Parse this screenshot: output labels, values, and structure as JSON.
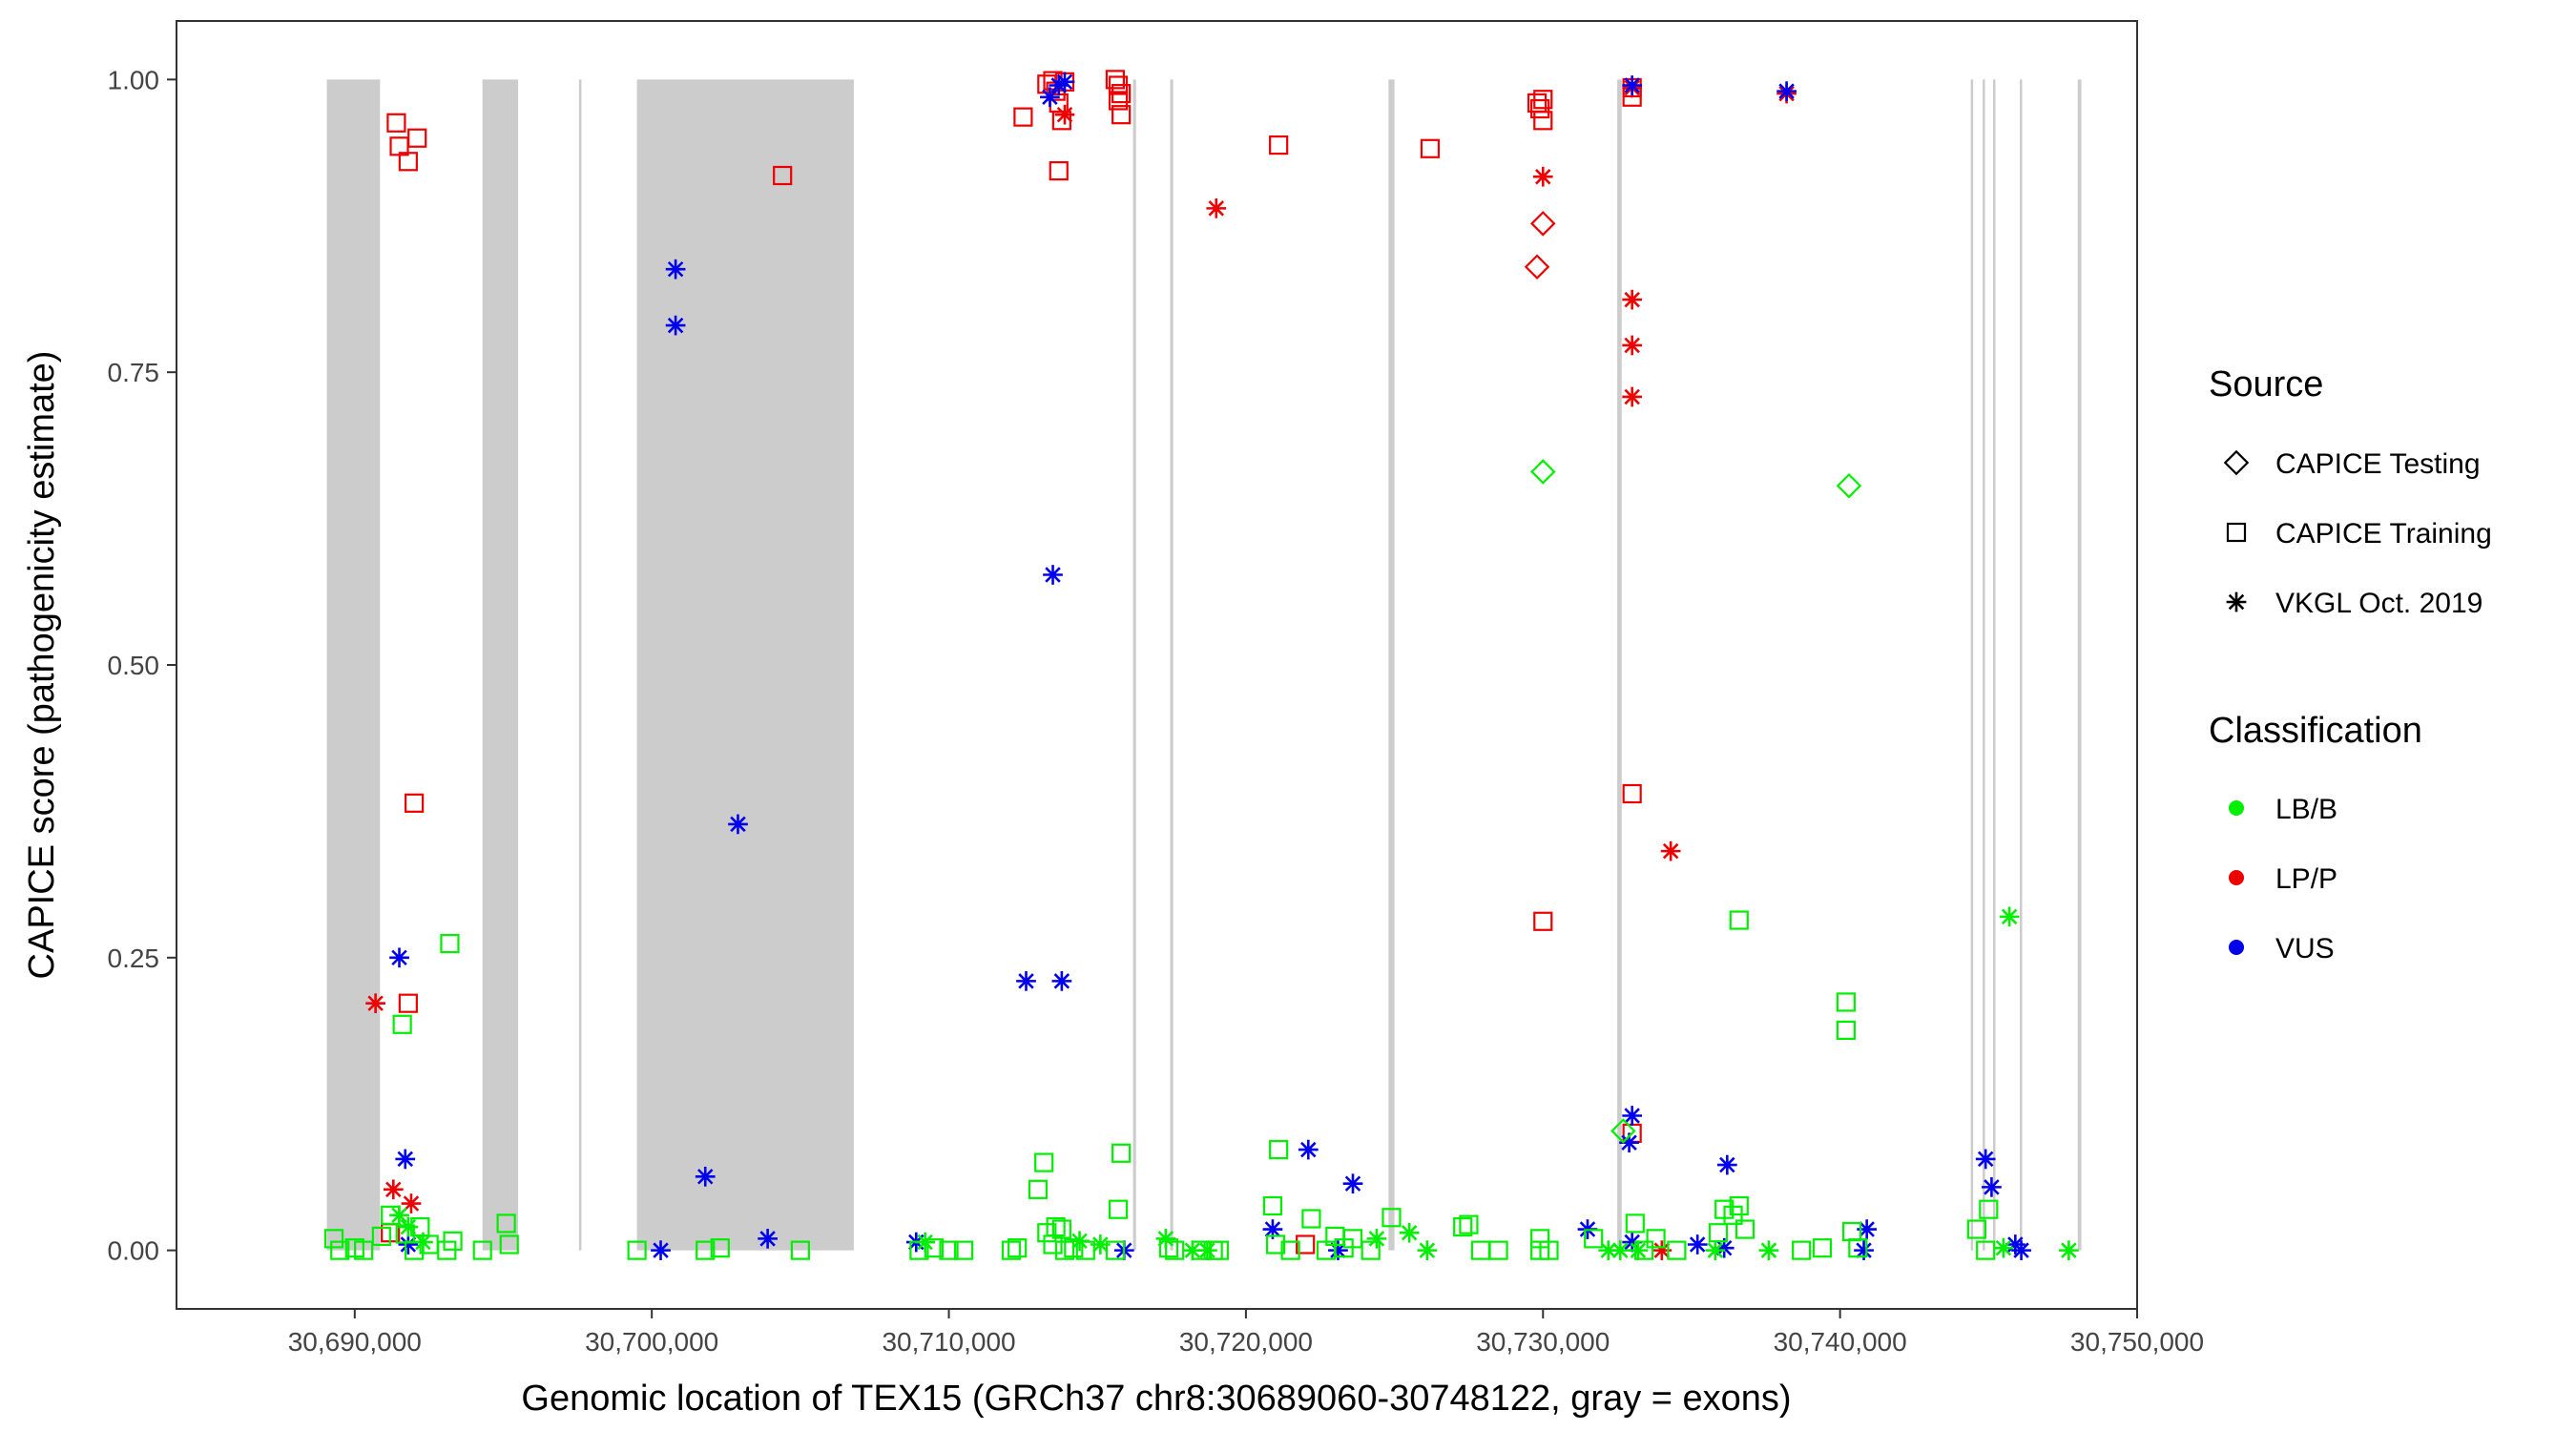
{
  "chart_data": {
    "type": "scatter",
    "xlabel": "Genomic location of TEX15 (GRCh37 chr8:30689060-30748122, gray = exons)",
    "ylabel": "CAPICE score (pathogenicity estimate)",
    "xlim": [
      30684000,
      30750000
    ],
    "ylim": [
      -0.05,
      1.05
    ],
    "x_ticks": [
      30690000,
      30700000,
      30710000,
      30720000,
      30730000,
      30740000,
      30750000
    ],
    "x_tick_labels": [
      "30,690,000",
      "30,700,000",
      "30,710,000",
      "30,720,000",
      "30,730,000",
      "30,740,000",
      "30,750,000"
    ],
    "y_ticks": [
      0,
      0.25,
      0.5,
      0.75,
      1.0
    ],
    "y_tick_labels": [
      "0.00",
      "0.25",
      "0.50",
      "0.75",
      "1.00"
    ],
    "exons": [
      [
        30689060,
        30690850
      ],
      [
        30694300,
        30695500
      ],
      [
        30697550,
        30697620
      ],
      [
        30699500,
        30706800
      ],
      [
        30716200,
        30716300
      ],
      [
        30717450,
        30717550
      ],
      [
        30724800,
        30725000
      ],
      [
        30732500,
        30732650
      ],
      [
        30744400,
        30744470
      ],
      [
        30744800,
        30744870
      ],
      [
        30745150,
        30745230
      ],
      [
        30746050,
        30746110
      ],
      [
        30748000,
        30748122
      ]
    ],
    "legend": {
      "source_title": "Source",
      "sources": [
        {
          "label": "CAPICE Testing",
          "shape": "diamond"
        },
        {
          "label": "CAPICE Training",
          "shape": "square"
        },
        {
          "label": "VKGL Oct. 2019",
          "shape": "asterisk"
        }
      ],
      "class_title": "Classification",
      "classes": [
        {
          "label": "LB/B",
          "color": "#00ee00"
        },
        {
          "label": "LP/P",
          "color": "#ee0000"
        },
        {
          "label": "VUS",
          "color": "#0000ee"
        }
      ]
    },
    "series": [
      {
        "name": "CAPICE Training LP/P",
        "shape": "square",
        "color": "#ee0000",
        "points": [
          [
            30691400,
            0.963
          ],
          [
            30691500,
            0.943
          ],
          [
            30691800,
            0.93
          ],
          [
            30692100,
            0.95
          ],
          [
            30692000,
            0.382
          ],
          [
            30691800,
            0.211
          ],
          [
            30691200,
            0.015
          ],
          [
            30704400,
            0.918
          ],
          [
            30712500,
            0.968
          ],
          [
            30713300,
            0.996
          ],
          [
            30713500,
            0.999
          ],
          [
            30713600,
            0.99
          ],
          [
            30713700,
            0.98
          ],
          [
            30713800,
            0.965
          ],
          [
            30713700,
            0.922
          ],
          [
            30713900,
            0.998
          ],
          [
            30715600,
            1.0
          ],
          [
            30715700,
            0.995
          ],
          [
            30715800,
            0.988
          ],
          [
            30715700,
            0.982
          ],
          [
            30715800,
            0.97
          ],
          [
            30721100,
            0.944
          ],
          [
            30726200,
            0.941
          ],
          [
            30729800,
            0.98
          ],
          [
            30730000,
            0.983
          ],
          [
            30729900,
            0.975
          ],
          [
            30730000,
            0.965
          ],
          [
            30730000,
            0.281
          ],
          [
            30733000,
            0.993
          ],
          [
            30733000,
            0.985
          ],
          [
            30733000,
            0.39
          ],
          [
            30733000,
            0.1
          ],
          [
            30722000,
            0.005
          ]
        ]
      },
      {
        "name": "VKGL LP/P",
        "shape": "asterisk",
        "color": "#ee0000",
        "points": [
          [
            30690700,
            0.211
          ],
          [
            30691300,
            0.052
          ],
          [
            30691900,
            0.04
          ],
          [
            30713900,
            0.97
          ],
          [
            30719000,
            0.89
          ],
          [
            30730000,
            0.917
          ],
          [
            30733000,
            0.812
          ],
          [
            30733000,
            0.773
          ],
          [
            30733000,
            0.729
          ],
          [
            30734300,
            0.341
          ],
          [
            30738200,
            0.988
          ],
          [
            30733000,
            0.993
          ],
          [
            30734000,
            0.0
          ]
        ]
      },
      {
        "name": "CAPICE Testing LP/P",
        "shape": "diamond",
        "color": "#ee0000",
        "points": [
          [
            30730000,
            0.877
          ],
          [
            30729800,
            0.84
          ]
        ]
      },
      {
        "name": "VKGL VUS",
        "shape": "asterisk",
        "color": "#0000ee",
        "points": [
          [
            30691500,
            0.25
          ],
          [
            30691700,
            0.078
          ],
          [
            30691800,
            0.005
          ],
          [
            30700800,
            0.838
          ],
          [
            30700800,
            0.79
          ],
          [
            30701800,
            0.063
          ],
          [
            30702900,
            0.364
          ],
          [
            30703900,
            0.01
          ],
          [
            30700300,
            0.0
          ],
          [
            30712600,
            0.23
          ],
          [
            30713500,
            0.577
          ],
          [
            30713800,
            0.23
          ],
          [
            30713400,
            0.985
          ],
          [
            30713900,
            0.998
          ],
          [
            30713700,
            0.995
          ],
          [
            30715900,
            0.0
          ],
          [
            30720900,
            0.018
          ],
          [
            30722100,
            0.086
          ],
          [
            30723100,
            0.0
          ],
          [
            30723600,
            0.057
          ],
          [
            30731500,
            0.018
          ],
          [
            30733000,
            0.995
          ],
          [
            30733000,
            0.115
          ],
          [
            30732900,
            0.092
          ],
          [
            30733000,
            0.007
          ],
          [
            30735200,
            0.005
          ],
          [
            30736200,
            0.073
          ],
          [
            30736100,
            0.002
          ],
          [
            30738200,
            0.99
          ],
          [
            30740900,
            0.018
          ],
          [
            30740800,
            0.0
          ],
          [
            30744900,
            0.078
          ],
          [
            30745100,
            0.054
          ],
          [
            30745900,
            0.005
          ],
          [
            30746100,
            0.0
          ],
          [
            30708900,
            0.007
          ]
        ]
      },
      {
        "name": "CAPICE Training LB/B",
        "shape": "square",
        "color": "#00ee00",
        "points": [
          [
            30689300,
            0.01
          ],
          [
            30689500,
            0.0
          ],
          [
            30690000,
            0.002
          ],
          [
            30690300,
            0.0
          ],
          [
            30690900,
            0.012
          ],
          [
            30691200,
            0.03
          ],
          [
            30691600,
            0.193
          ],
          [
            30691700,
            0.014
          ],
          [
            30692000,
            0.0
          ],
          [
            30692200,
            0.02
          ],
          [
            30692500,
            0.005
          ],
          [
            30693200,
            0.262
          ],
          [
            30693300,
            0.008
          ],
          [
            30693100,
            0.0
          ],
          [
            30694300,
            0.0
          ],
          [
            30695100,
            0.023
          ],
          [
            30695200,
            0.005
          ],
          [
            30699500,
            0.0
          ],
          [
            30701800,
            0.0
          ],
          [
            30702300,
            0.002
          ],
          [
            30705000,
            0.0
          ],
          [
            30709000,
            0.0
          ],
          [
            30709500,
            0.002
          ],
          [
            30710000,
            0.0
          ],
          [
            30710500,
            0.0
          ],
          [
            30712100,
            0.0
          ],
          [
            30712300,
            0.002
          ],
          [
            30713000,
            0.052
          ],
          [
            30713200,
            0.075
          ],
          [
            30713300,
            0.015
          ],
          [
            30713500,
            0.005
          ],
          [
            30713600,
            0.02
          ],
          [
            30713800,
            0.018
          ],
          [
            30713900,
            0.0
          ],
          [
            30714200,
            0.002
          ],
          [
            30714600,
            0.0
          ],
          [
            30715700,
            0.035
          ],
          [
            30715800,
            0.083
          ],
          [
            30715600,
            0.0
          ],
          [
            30717400,
            0.002
          ],
          [
            30717600,
            0.0
          ],
          [
            30718500,
            0.0
          ],
          [
            30718900,
            0.0
          ],
          [
            30719100,
            0.0
          ],
          [
            30720900,
            0.038
          ],
          [
            30721100,
            0.086
          ],
          [
            30721000,
            0.005
          ],
          [
            30721500,
            0.0
          ],
          [
            30722200,
            0.027
          ],
          [
            30722700,
            0.0
          ],
          [
            30723000,
            0.012
          ],
          [
            30723300,
            0.002
          ],
          [
            30723600,
            0.01
          ],
          [
            30724200,
            0.0
          ],
          [
            30724900,
            0.028
          ],
          [
            30727300,
            0.02
          ],
          [
            30727500,
            0.022
          ],
          [
            30727900,
            0.0
          ],
          [
            30728500,
            0.0
          ],
          [
            30729900,
            0.01
          ],
          [
            30729900,
            0.0
          ],
          [
            30730200,
            0.0
          ],
          [
            30731700,
            0.01
          ],
          [
            30733100,
            0.023
          ],
          [
            30733400,
            0.0
          ],
          [
            30733800,
            0.01
          ],
          [
            30734500,
            0.0
          ],
          [
            30735900,
            0.015
          ],
          [
            30736100,
            0.035
          ],
          [
            30736400,
            0.03
          ],
          [
            30736600,
            0.038
          ],
          [
            30736600,
            0.282
          ],
          [
            30736800,
            0.018
          ],
          [
            30738700,
            0.0
          ],
          [
            30739400,
            0.002
          ],
          [
            30740200,
            0.212
          ],
          [
            30740200,
            0.188
          ],
          [
            30740400,
            0.016
          ],
          [
            30740600,
            0.002
          ],
          [
            30744600,
            0.018
          ],
          [
            30745000,
            0.035
          ],
          [
            30744900,
            0.0
          ]
        ]
      },
      {
        "name": "VKGL LB/B",
        "shape": "asterisk",
        "color": "#00ee00",
        "points": [
          [
            30691500,
            0.03
          ],
          [
            30691800,
            0.02
          ],
          [
            30692300,
            0.007
          ],
          [
            30709200,
            0.007
          ],
          [
            30714400,
            0.008
          ],
          [
            30715100,
            0.005
          ],
          [
            30717300,
            0.01
          ],
          [
            30718200,
            0.0
          ],
          [
            30718700,
            0.0
          ],
          [
            30724400,
            0.01
          ],
          [
            30725500,
            0.015
          ],
          [
            30726100,
            0.0
          ],
          [
            30732200,
            0.0
          ],
          [
            30732600,
            0.0
          ],
          [
            30733200,
            0.0
          ],
          [
            30735800,
            0.0
          ],
          [
            30737600,
            0.0
          ],
          [
            30745500,
            0.002
          ],
          [
            30745700,
            0.285
          ],
          [
            30747700,
            0.0
          ]
        ]
      },
      {
        "name": "CAPICE Testing LB/B",
        "shape": "diamond",
        "color": "#00ee00",
        "points": [
          [
            30730000,
            0.665
          ],
          [
            30740300,
            0.653
          ],
          [
            30732700,
            0.102
          ]
        ]
      }
    ]
  }
}
